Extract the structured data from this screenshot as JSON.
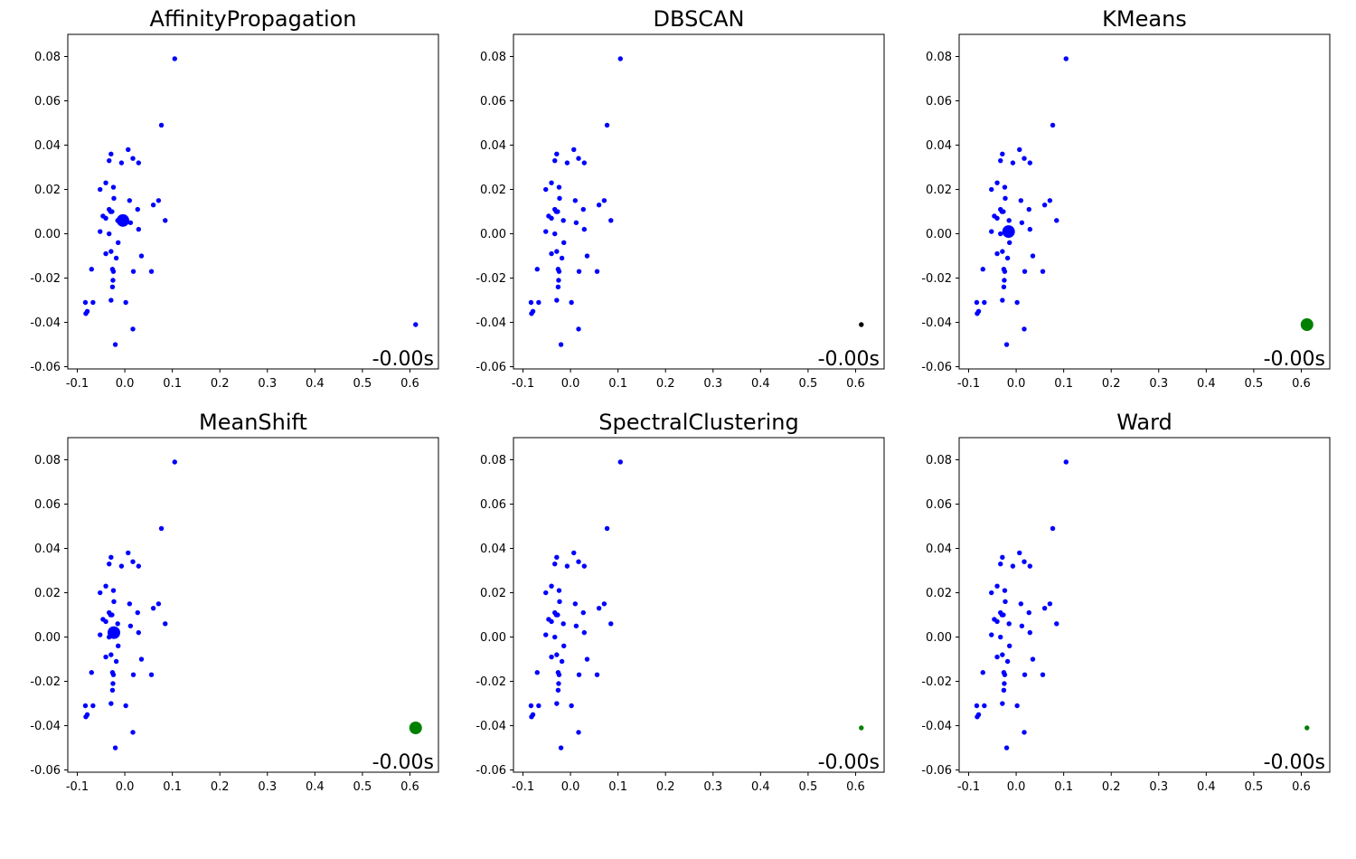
{
  "chart_data": [
    {
      "type": "scatter",
      "title": "AffinityPropagation",
      "annotation": "-0.00s",
      "xlim": [
        -0.12,
        0.66
      ],
      "ylim": [
        -0.061,
        0.09
      ],
      "xticks": [
        -0.1,
        0.0,
        0.1,
        0.2,
        0.3,
        0.4,
        0.5,
        0.6
      ],
      "yticks": [
        -0.06,
        -0.04,
        -0.02,
        0.0,
        0.02,
        0.04,
        0.06,
        0.08
      ],
      "point_colors": [
        "#0000ff"
      ],
      "centers": [
        {
          "x": -0.004,
          "y": 0.006,
          "color": "#0000ff"
        }
      ]
    },
    {
      "type": "scatter",
      "title": "DBSCAN",
      "annotation": "-0.00s",
      "xlim": [
        -0.12,
        0.66
      ],
      "ylim": [
        -0.061,
        0.09
      ],
      "xticks": [
        -0.1,
        0.0,
        0.1,
        0.2,
        0.3,
        0.4,
        0.5,
        0.6
      ],
      "yticks": [
        -0.06,
        -0.04,
        -0.02,
        0.0,
        0.02,
        0.04,
        0.06,
        0.08
      ],
      "point_colors": [
        "#0000ff",
        "#000000"
      ],
      "centers": []
    },
    {
      "type": "scatter",
      "title": "KMeans",
      "annotation": "-0.00s",
      "xlim": [
        -0.12,
        0.66
      ],
      "ylim": [
        -0.061,
        0.09
      ],
      "xticks": [
        -0.1,
        0.0,
        0.1,
        0.2,
        0.3,
        0.4,
        0.5,
        0.6
      ],
      "yticks": [
        -0.06,
        -0.04,
        -0.02,
        0.0,
        0.02,
        0.04,
        0.06,
        0.08
      ],
      "point_colors": [
        "#0000ff",
        "#008000"
      ],
      "centers": [
        {
          "x": -0.016,
          "y": 0.001,
          "color": "#0000ff"
        },
        {
          "x": 0.612,
          "y": -0.041,
          "color": "#008000"
        }
      ]
    },
    {
      "type": "scatter",
      "title": "MeanShift",
      "annotation": "-0.00s",
      "xlim": [
        -0.12,
        0.66
      ],
      "ylim": [
        -0.061,
        0.09
      ],
      "xticks": [
        -0.1,
        0.0,
        0.1,
        0.2,
        0.3,
        0.4,
        0.5,
        0.6
      ],
      "yticks": [
        -0.06,
        -0.04,
        -0.02,
        0.0,
        0.02,
        0.04,
        0.06,
        0.08
      ],
      "point_colors": [
        "#0000ff",
        "#008000"
      ],
      "centers": [
        {
          "x": -0.023,
          "y": 0.002,
          "color": "#0000ff"
        },
        {
          "x": 0.612,
          "y": -0.041,
          "color": "#008000"
        }
      ]
    },
    {
      "type": "scatter",
      "title": "SpectralClustering",
      "annotation": "-0.00s",
      "xlim": [
        -0.12,
        0.66
      ],
      "ylim": [
        -0.061,
        0.09
      ],
      "xticks": [
        -0.1,
        0.0,
        0.1,
        0.2,
        0.3,
        0.4,
        0.5,
        0.6
      ],
      "yticks": [
        -0.06,
        -0.04,
        -0.02,
        0.0,
        0.02,
        0.04,
        0.06,
        0.08
      ],
      "point_colors": [
        "#0000ff",
        "#008000"
      ],
      "centers": []
    },
    {
      "type": "scatter",
      "title": "Ward",
      "annotation": "-0.00s",
      "xlim": [
        -0.12,
        0.66
      ],
      "ylim": [
        -0.061,
        0.09
      ],
      "xticks": [
        -0.1,
        0.0,
        0.1,
        0.2,
        0.3,
        0.4,
        0.5,
        0.6
      ],
      "yticks": [
        -0.06,
        -0.04,
        -0.02,
        0.0,
        0.02,
        0.04,
        0.06,
        0.08
      ],
      "point_colors": [
        "#0000ff",
        "#008000"
      ],
      "centers": []
    }
  ],
  "points": [
    {
      "x": 0.105,
      "y": 0.079,
      "cluster": 0
    },
    {
      "x": 0.077,
      "y": 0.049,
      "cluster": 0
    },
    {
      "x": -0.029,
      "y": 0.036,
      "cluster": 0
    },
    {
      "x": 0.007,
      "y": 0.038,
      "cluster": 0
    },
    {
      "x": -0.033,
      "y": 0.033,
      "cluster": 0
    },
    {
      "x": 0.017,
      "y": 0.034,
      "cluster": 0
    },
    {
      "x": -0.007,
      "y": 0.032,
      "cluster": 0
    },
    {
      "x": 0.029,
      "y": 0.032,
      "cluster": 0
    },
    {
      "x": -0.04,
      "y": 0.023,
      "cluster": 0
    },
    {
      "x": -0.052,
      "y": 0.02,
      "cluster": 0
    },
    {
      "x": -0.024,
      "y": 0.021,
      "cluster": 0
    },
    {
      "x": -0.023,
      "y": 0.016,
      "cluster": 0
    },
    {
      "x": 0.01,
      "y": 0.015,
      "cluster": 0
    },
    {
      "x": 0.071,
      "y": 0.015,
      "cluster": 0
    },
    {
      "x": 0.06,
      "y": 0.013,
      "cluster": 0
    },
    {
      "x": -0.033,
      "y": 0.011,
      "cluster": 0
    },
    {
      "x": -0.027,
      "y": 0.01,
      "cluster": 0
    },
    {
      "x": -0.03,
      "y": 0.01,
      "cluster": 0
    },
    {
      "x": 0.027,
      "y": 0.011,
      "cluster": 0
    },
    {
      "x": -0.046,
      "y": 0.008,
      "cluster": 0
    },
    {
      "x": -0.04,
      "y": 0.007,
      "cluster": 0
    },
    {
      "x": -0.015,
      "y": 0.006,
      "cluster": 0
    },
    {
      "x": 0.012,
      "y": 0.005,
      "cluster": 0
    },
    {
      "x": 0.085,
      "y": 0.006,
      "cluster": 0
    },
    {
      "x": 0.029,
      "y": 0.002,
      "cluster": 0
    },
    {
      "x": -0.052,
      "y": 0.001,
      "cluster": 0
    },
    {
      "x": -0.033,
      "y": 0.0,
      "cluster": 0
    },
    {
      "x": -0.014,
      "y": -0.004,
      "cluster": 0
    },
    {
      "x": -0.04,
      "y": -0.009,
      "cluster": 0
    },
    {
      "x": -0.029,
      "y": -0.008,
      "cluster": 0
    },
    {
      "x": -0.018,
      "y": -0.011,
      "cluster": 0
    },
    {
      "x": 0.035,
      "y": -0.01,
      "cluster": 0
    },
    {
      "x": -0.07,
      "y": -0.016,
      "cluster": 0
    },
    {
      "x": -0.026,
      "y": -0.016,
      "cluster": 0
    },
    {
      "x": -0.024,
      "y": -0.017,
      "cluster": 0
    },
    {
      "x": 0.018,
      "y": -0.017,
      "cluster": 0
    },
    {
      "x": 0.056,
      "y": -0.017,
      "cluster": 0
    },
    {
      "x": -0.025,
      "y": -0.021,
      "cluster": 0
    },
    {
      "x": -0.026,
      "y": -0.024,
      "cluster": 0
    },
    {
      "x": -0.083,
      "y": -0.031,
      "cluster": 0
    },
    {
      "x": -0.067,
      "y": -0.031,
      "cluster": 0
    },
    {
      "x": -0.029,
      "y": -0.03,
      "cluster": 0
    },
    {
      "x": 0.002,
      "y": -0.031,
      "cluster": 0
    },
    {
      "x": -0.079,
      "y": -0.035,
      "cluster": 0
    },
    {
      "x": -0.082,
      "y": -0.036,
      "cluster": 0
    },
    {
      "x": 0.017,
      "y": -0.043,
      "cluster": 0
    },
    {
      "x": -0.02,
      "y": -0.05,
      "cluster": 0
    },
    {
      "x": 0.612,
      "y": -0.041,
      "cluster": 1
    }
  ]
}
